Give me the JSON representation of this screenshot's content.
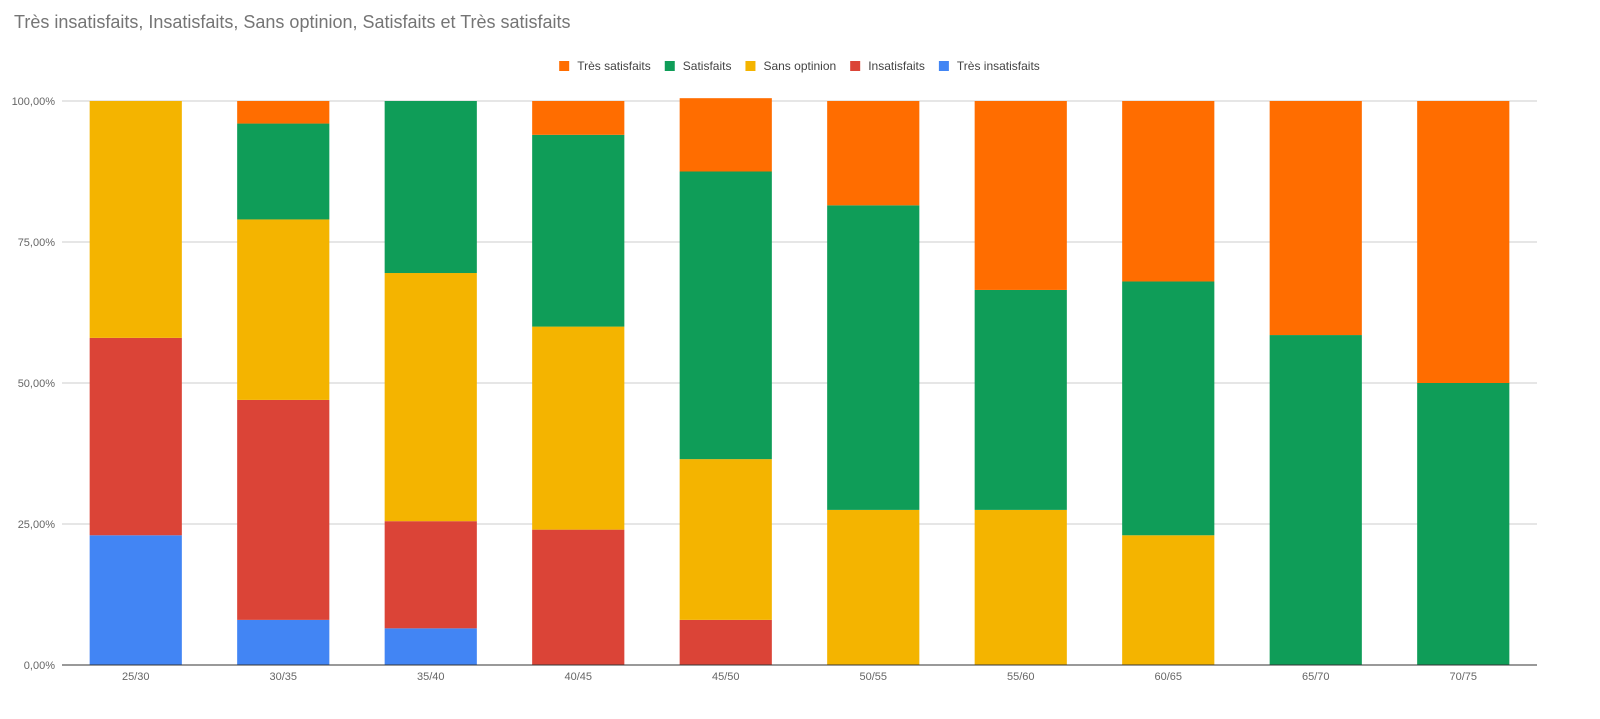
{
  "chart_data": {
    "type": "bar",
    "stacked": true,
    "normalized": true,
    "title": "Très insatisfaits, Insatisfaits, Sans optinion, Satisfaits et Très satisfaits",
    "xlabel": "",
    "ylabel": "",
    "ylim": [
      0,
      100
    ],
    "y_ticks": [
      "0,00%",
      "25,00%",
      "50,00%",
      "75,00%",
      "100,00%"
    ],
    "categories": [
      "25/30",
      "30/35",
      "35/40",
      "40/45",
      "45/50",
      "50/55",
      "55/60",
      "60/65",
      "65/70",
      "70/75"
    ],
    "series": [
      {
        "name": "Très insatisfaits",
        "color": "#4285F4",
        "values": [
          23.0,
          8.0,
          6.5,
          0,
          0,
          0,
          0,
          0,
          0,
          0
        ]
      },
      {
        "name": "Insatisfaits",
        "color": "#DB4437",
        "values": [
          35.0,
          39.0,
          19.0,
          24.0,
          8.0,
          0,
          0,
          0,
          0,
          0
        ]
      },
      {
        "name": "Sans optinion",
        "color": "#F4B400",
        "values": [
          42.0,
          32.0,
          44.0,
          36.0,
          28.5,
          27.5,
          27.5,
          23.0,
          0,
          0
        ]
      },
      {
        "name": "Satisfaits",
        "color": "#0F9D58",
        "values": [
          0,
          17.0,
          30.5,
          34.0,
          51.0,
          54.0,
          39.0,
          45.0,
          58.5,
          50.0
        ]
      },
      {
        "name": "Très satisfaits",
        "color": "#FF6D00",
        "values": [
          0,
          4.0,
          0,
          6.0,
          13.0,
          18.5,
          33.5,
          32.0,
          41.5,
          50.0
        ]
      }
    ],
    "legend_order": [
      "Très satisfaits",
      "Satisfaits",
      "Sans optinion",
      "Insatisfaits",
      "Très insatisfaits"
    ],
    "legend_position": "top",
    "grid": true
  }
}
